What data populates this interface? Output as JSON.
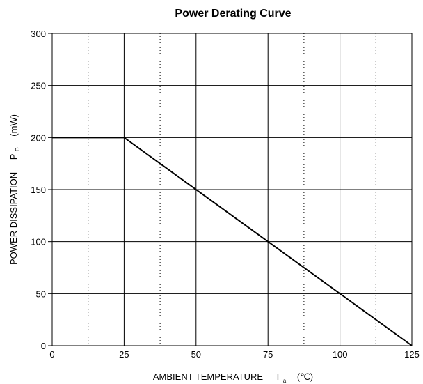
{
  "chart_data": {
    "type": "line",
    "title": "Power Derating Curve",
    "xlabel": {
      "text": "AMBIENT TEMPERATURE",
      "symbol": "T",
      "subscript": "a",
      "unit": "(℃)"
    },
    "ylabel": {
      "text": "POWER DISSIPATION",
      "symbol": "P",
      "subscript": "D",
      "unit": "(mW)"
    },
    "xlim": [
      0,
      125
    ],
    "ylim": [
      0,
      300
    ],
    "x_ticks": [
      0,
      25,
      50,
      75,
      100,
      125
    ],
    "y_ticks": [
      0,
      50,
      100,
      150,
      200,
      250,
      300
    ],
    "x_minor_dotted": [
      12.5,
      37.5,
      62.5,
      87.5,
      112.5
    ],
    "grid": true,
    "series": [
      {
        "x": [
          0,
          25,
          125
        ],
        "y": [
          200,
          200,
          0
        ],
        "color": "#000000"
      }
    ]
  }
}
